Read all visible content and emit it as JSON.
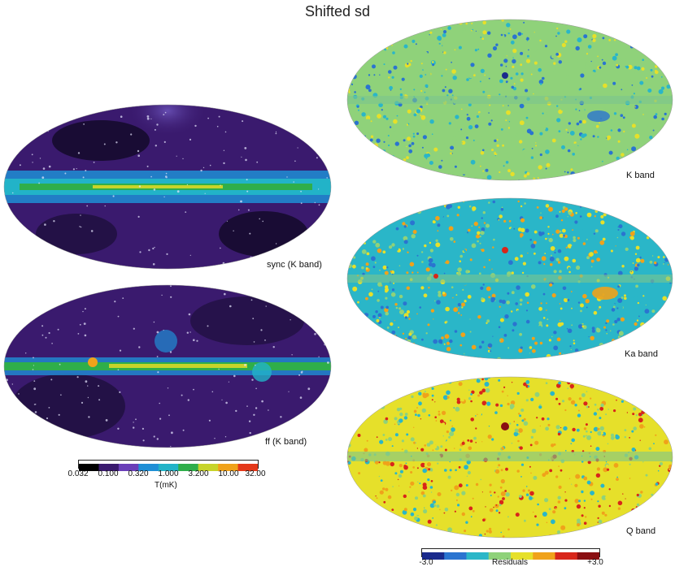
{
  "figure": {
    "title": "Shifted sd"
  },
  "left_maps": [
    {
      "label": "sync (K band)",
      "palette": "temperature"
    },
    {
      "label": "ff (K band)",
      "palette": "temperature"
    }
  ],
  "right_maps": [
    {
      "label": "K band",
      "palette": "residual"
    },
    {
      "label": "Ka band",
      "palette": "residual"
    },
    {
      "label": "Q band",
      "palette": "residual"
    }
  ],
  "temperature_colorbar": {
    "ticks": [
      "0.032",
      "0.100",
      "0.320",
      "1.000",
      "3.200",
      "10.00",
      "32.00"
    ],
    "label": "T(mK)",
    "scale": "log",
    "colors": [
      "#000000",
      "#3a1a6e",
      "#6a3fb8",
      "#1f8fd6",
      "#22b3c8",
      "#2fae4a",
      "#c7d42a",
      "#f0a21a",
      "#e4381a"
    ]
  },
  "residual_colorbar": {
    "min_label": "-3.0",
    "label": "Residuals",
    "max_label": "+3.0",
    "colors": [
      "#1a2a8c",
      "#2a74d0",
      "#2ab6c8",
      "#8fd27a",
      "#e6e02a",
      "#f0a21a",
      "#d8261a",
      "#8a0f12"
    ]
  }
}
